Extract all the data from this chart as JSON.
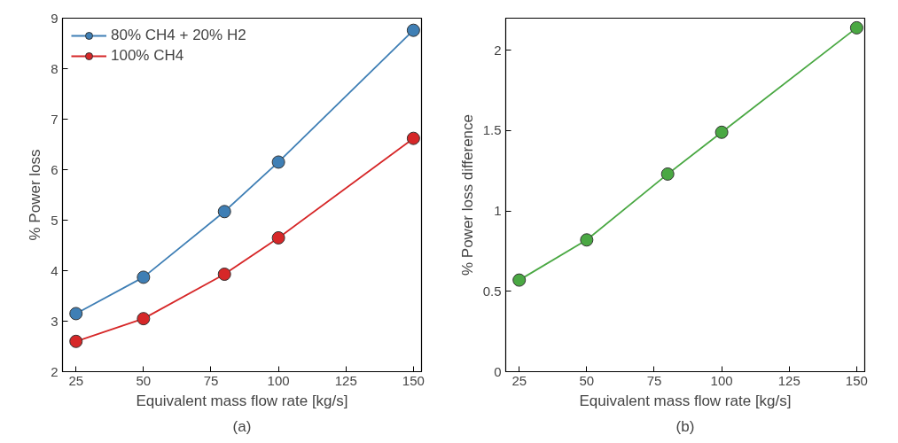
{
  "chart_data": [
    {
      "type": "line",
      "xlabel": "Equivalent mass flow rate [kg/s]",
      "ylabel": "% Power loss",
      "annotations": [
        "(a)"
      ],
      "x": [
        25,
        50,
        80,
        100,
        150
      ],
      "xlim": [
        20,
        153
      ],
      "xticks": [
        25,
        50,
        75,
        100,
        125,
        150
      ],
      "ylim": [
        2,
        9
      ],
      "yticks": [
        2,
        3,
        4,
        5,
        6,
        7,
        8,
        9
      ],
      "series": [
        {
          "name": "80% CH4 + 20% H2",
          "color": "#3f7fb5",
          "values": [
            3.15,
            3.87,
            5.17,
            6.15,
            8.76
          ]
        },
        {
          "name": "100% CH4",
          "color": "#d62728",
          "values": [
            2.6,
            3.05,
            3.93,
            4.65,
            6.62
          ]
        }
      ],
      "marker": "circle",
      "legend": "top left",
      "grid": false
    },
    {
      "type": "line",
      "xlabel": "Equivalent mass flow rate [kg/s]",
      "ylabel": "% Power loss difference",
      "annotations": [
        "(b)"
      ],
      "x": [
        25,
        50,
        80,
        100,
        150
      ],
      "xlim": [
        20,
        153
      ],
      "xticks": [
        25,
        50,
        75,
        100,
        125,
        150
      ],
      "ylim": [
        0,
        2.2
      ],
      "yticks": [
        0,
        0.5,
        1,
        1.5,
        2
      ],
      "series": [
        {
          "color": "#4aa843",
          "values": [
            0.57,
            0.82,
            1.23,
            1.49,
            2.14
          ]
        }
      ],
      "marker": "circle",
      "grid": false
    }
  ]
}
